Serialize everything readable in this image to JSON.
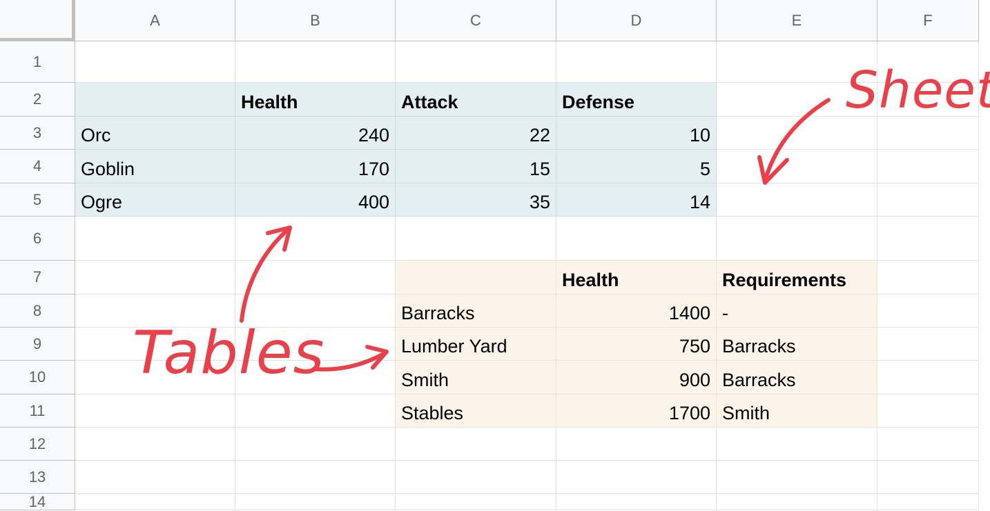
{
  "columns": [
    "A",
    "B",
    "C",
    "D",
    "E",
    "F"
  ],
  "rows": [
    "1",
    "2",
    "3",
    "4",
    "5",
    "6",
    "7",
    "8",
    "9",
    "10",
    "11",
    "12",
    "13",
    "14"
  ],
  "table_monsters": {
    "headers": [
      "",
      "Health",
      "Attack",
      "Defense"
    ],
    "rows": [
      [
        "Orc",
        "240",
        "22",
        "10"
      ],
      [
        "Goblin",
        "170",
        "15",
        "5"
      ],
      [
        "Ogre",
        "400",
        "35",
        "14"
      ]
    ]
  },
  "table_buildings": {
    "headers": [
      "",
      "Health",
      "Requirements"
    ],
    "rows": [
      [
        "Barracks",
        "1400",
        "-"
      ],
      [
        "Lumber Yard",
        "750",
        "Barracks"
      ],
      [
        "Smith",
        "900",
        "Barracks"
      ],
      [
        "Stables",
        "1700",
        "Smith"
      ]
    ]
  },
  "annotations": {
    "sheet": "Sheet",
    "tables": "Tables"
  },
  "colors": {
    "table1_fill": "#e3eff2",
    "table2_fill": "#fcf3e9",
    "annotation": "#e8414a",
    "header_bg": "#f8f9fa"
  }
}
